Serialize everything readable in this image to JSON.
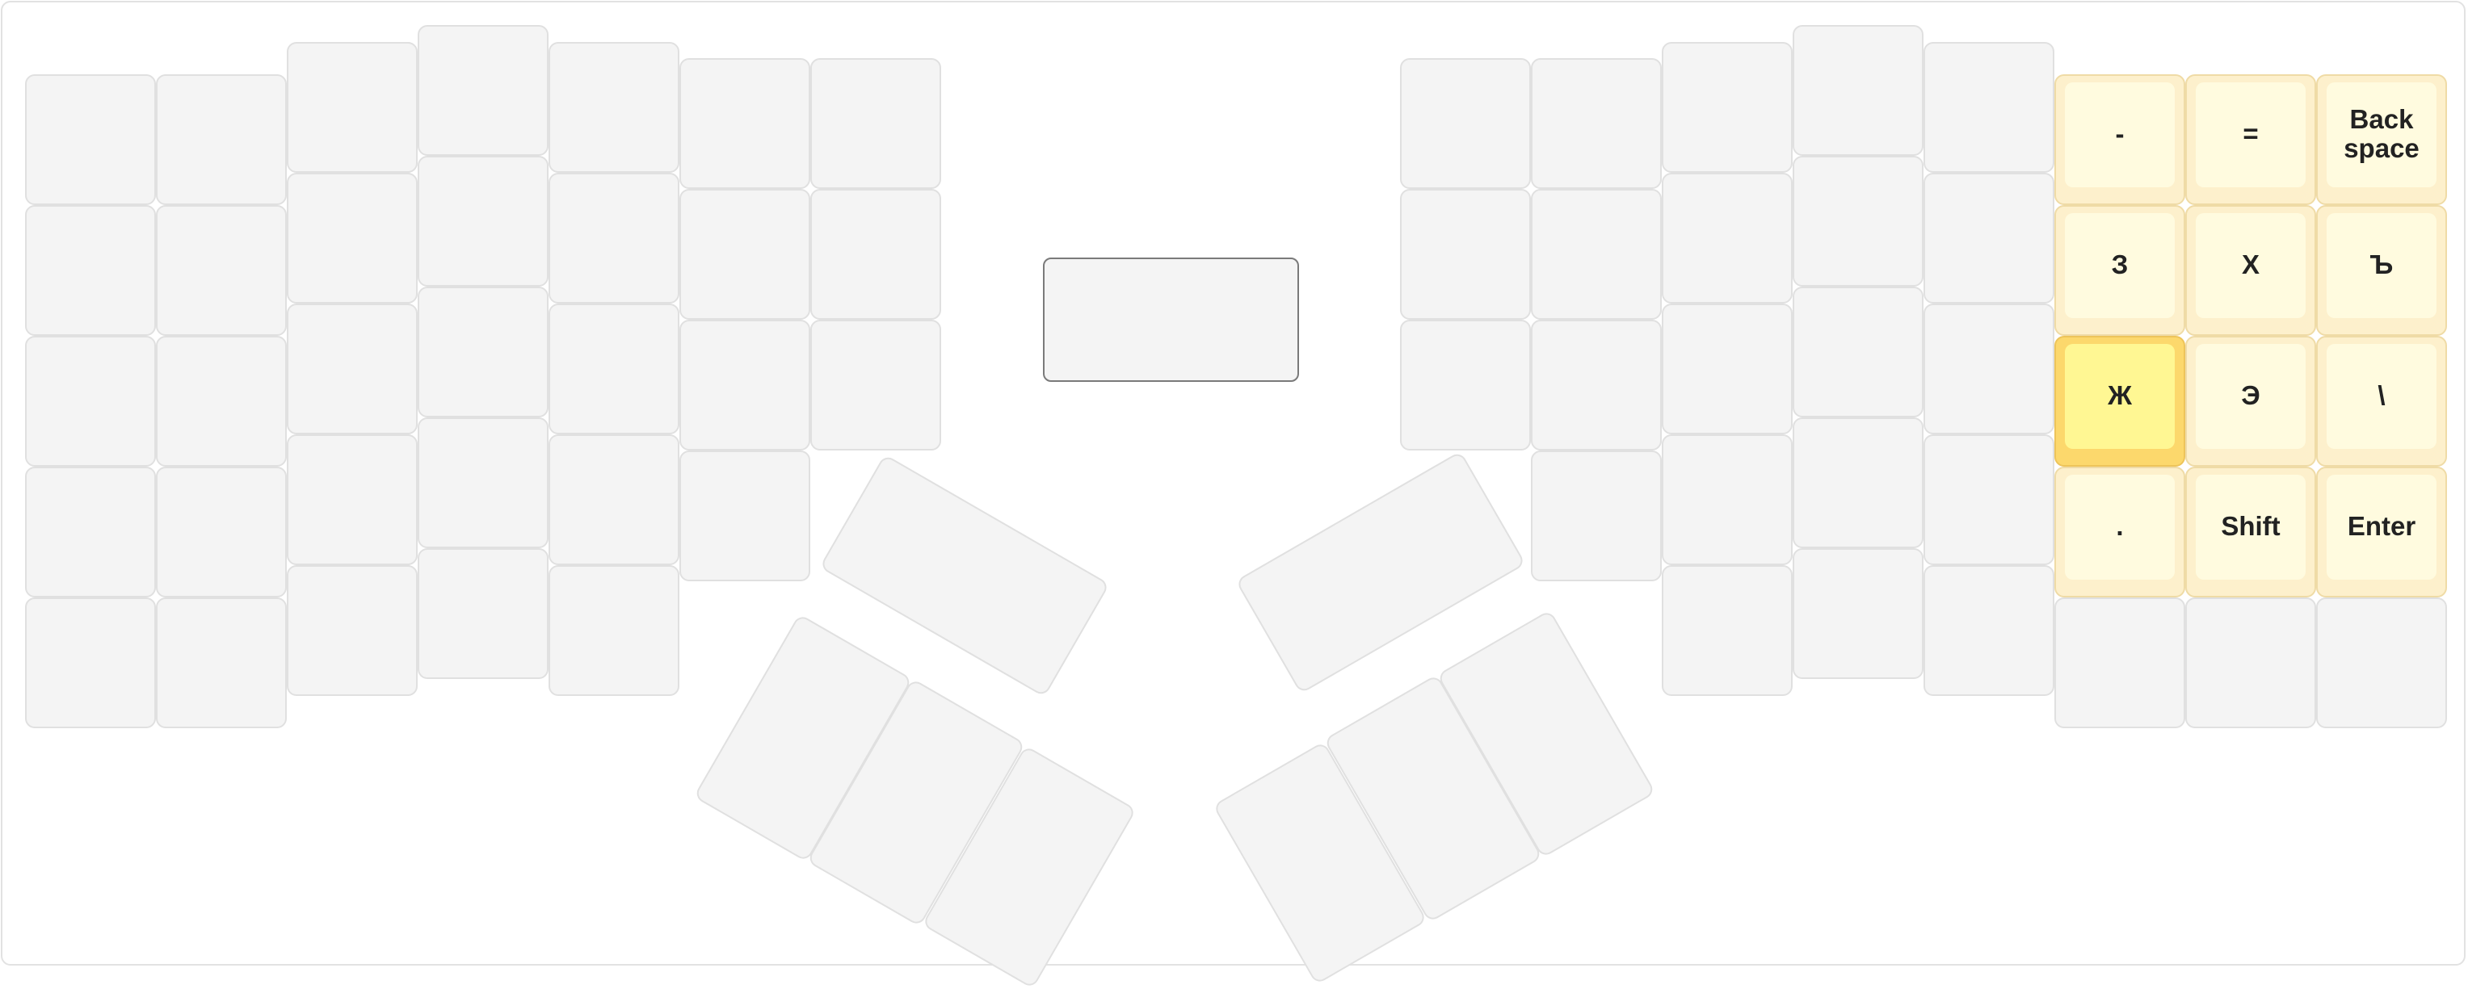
{
  "keyboard": {
    "layout": "split-ergonomic",
    "keys": {
      "minus": "-",
      "equals": "=",
      "backspace": "Back\nspace",
      "ze": "З",
      "kha": "Х",
      "hard_sign": "Ъ",
      "zhe": "Ж",
      "e": "Э",
      "backslash": "\\",
      "period": ".",
      "shift": "Shift",
      "enter": "Enter"
    },
    "active_key": "Ж",
    "colors": {
      "key_blank": "#f4f4f4",
      "key_mapped": "#fdf0cc",
      "key_active": "#fcd86c"
    }
  }
}
